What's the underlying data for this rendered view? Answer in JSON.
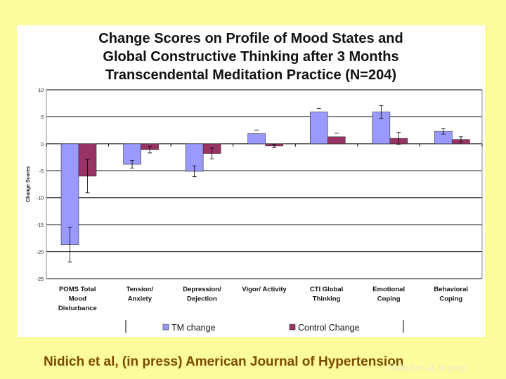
{
  "chart_data": {
    "type": "bar",
    "title_lines": [
      "Change Scores on Profile of Mood States and",
      "Global Constructive Thinking after 3 Months",
      "Transcendental Meditation Practice (N=204)"
    ],
    "ylabel": "Change Scores",
    "xlabel": "",
    "ylim": [
      -25,
      10
    ],
    "yticks": [
      10,
      5,
      0,
      -5,
      -10,
      -15,
      -20,
      -25
    ],
    "grid": true,
    "categories": [
      [
        "POMS Total",
        "Mood",
        "Disturbance"
      ],
      [
        "Tension/",
        "Anxiety"
      ],
      [
        "Depression/",
        "Dejection"
      ],
      [
        "Vigor/ Activity"
      ],
      [
        "CTI Global",
        "Thinking"
      ],
      [
        "Emotional",
        "Coping"
      ],
      [
        "Behavioral",
        "Coping"
      ]
    ],
    "series": [
      {
        "name": "TM change",
        "color": "#9999ff",
        "values": [
          -18.7,
          -3.8,
          -5.1,
          1.9,
          5.9,
          5.9,
          2.3
        ],
        "errors": [
          3.2,
          0.7,
          1.0,
          0.0,
          0.0,
          1.2,
          0.5
        ]
      },
      {
        "name": "Control Change",
        "color": "#993366",
        "values": [
          -6.0,
          -1.1,
          -1.8,
          -0.4,
          1.3,
          1.0,
          0.8
        ],
        "errors": [
          3.1,
          0.6,
          1.0,
          0.3,
          0.0,
          1.1,
          0.5
        ]
      }
    ],
    "legend_position": "bottom"
  },
  "citation": "Nidich et al, (in press) American Journal of Hypertension",
  "watermark": "Nidich et al, in prep"
}
